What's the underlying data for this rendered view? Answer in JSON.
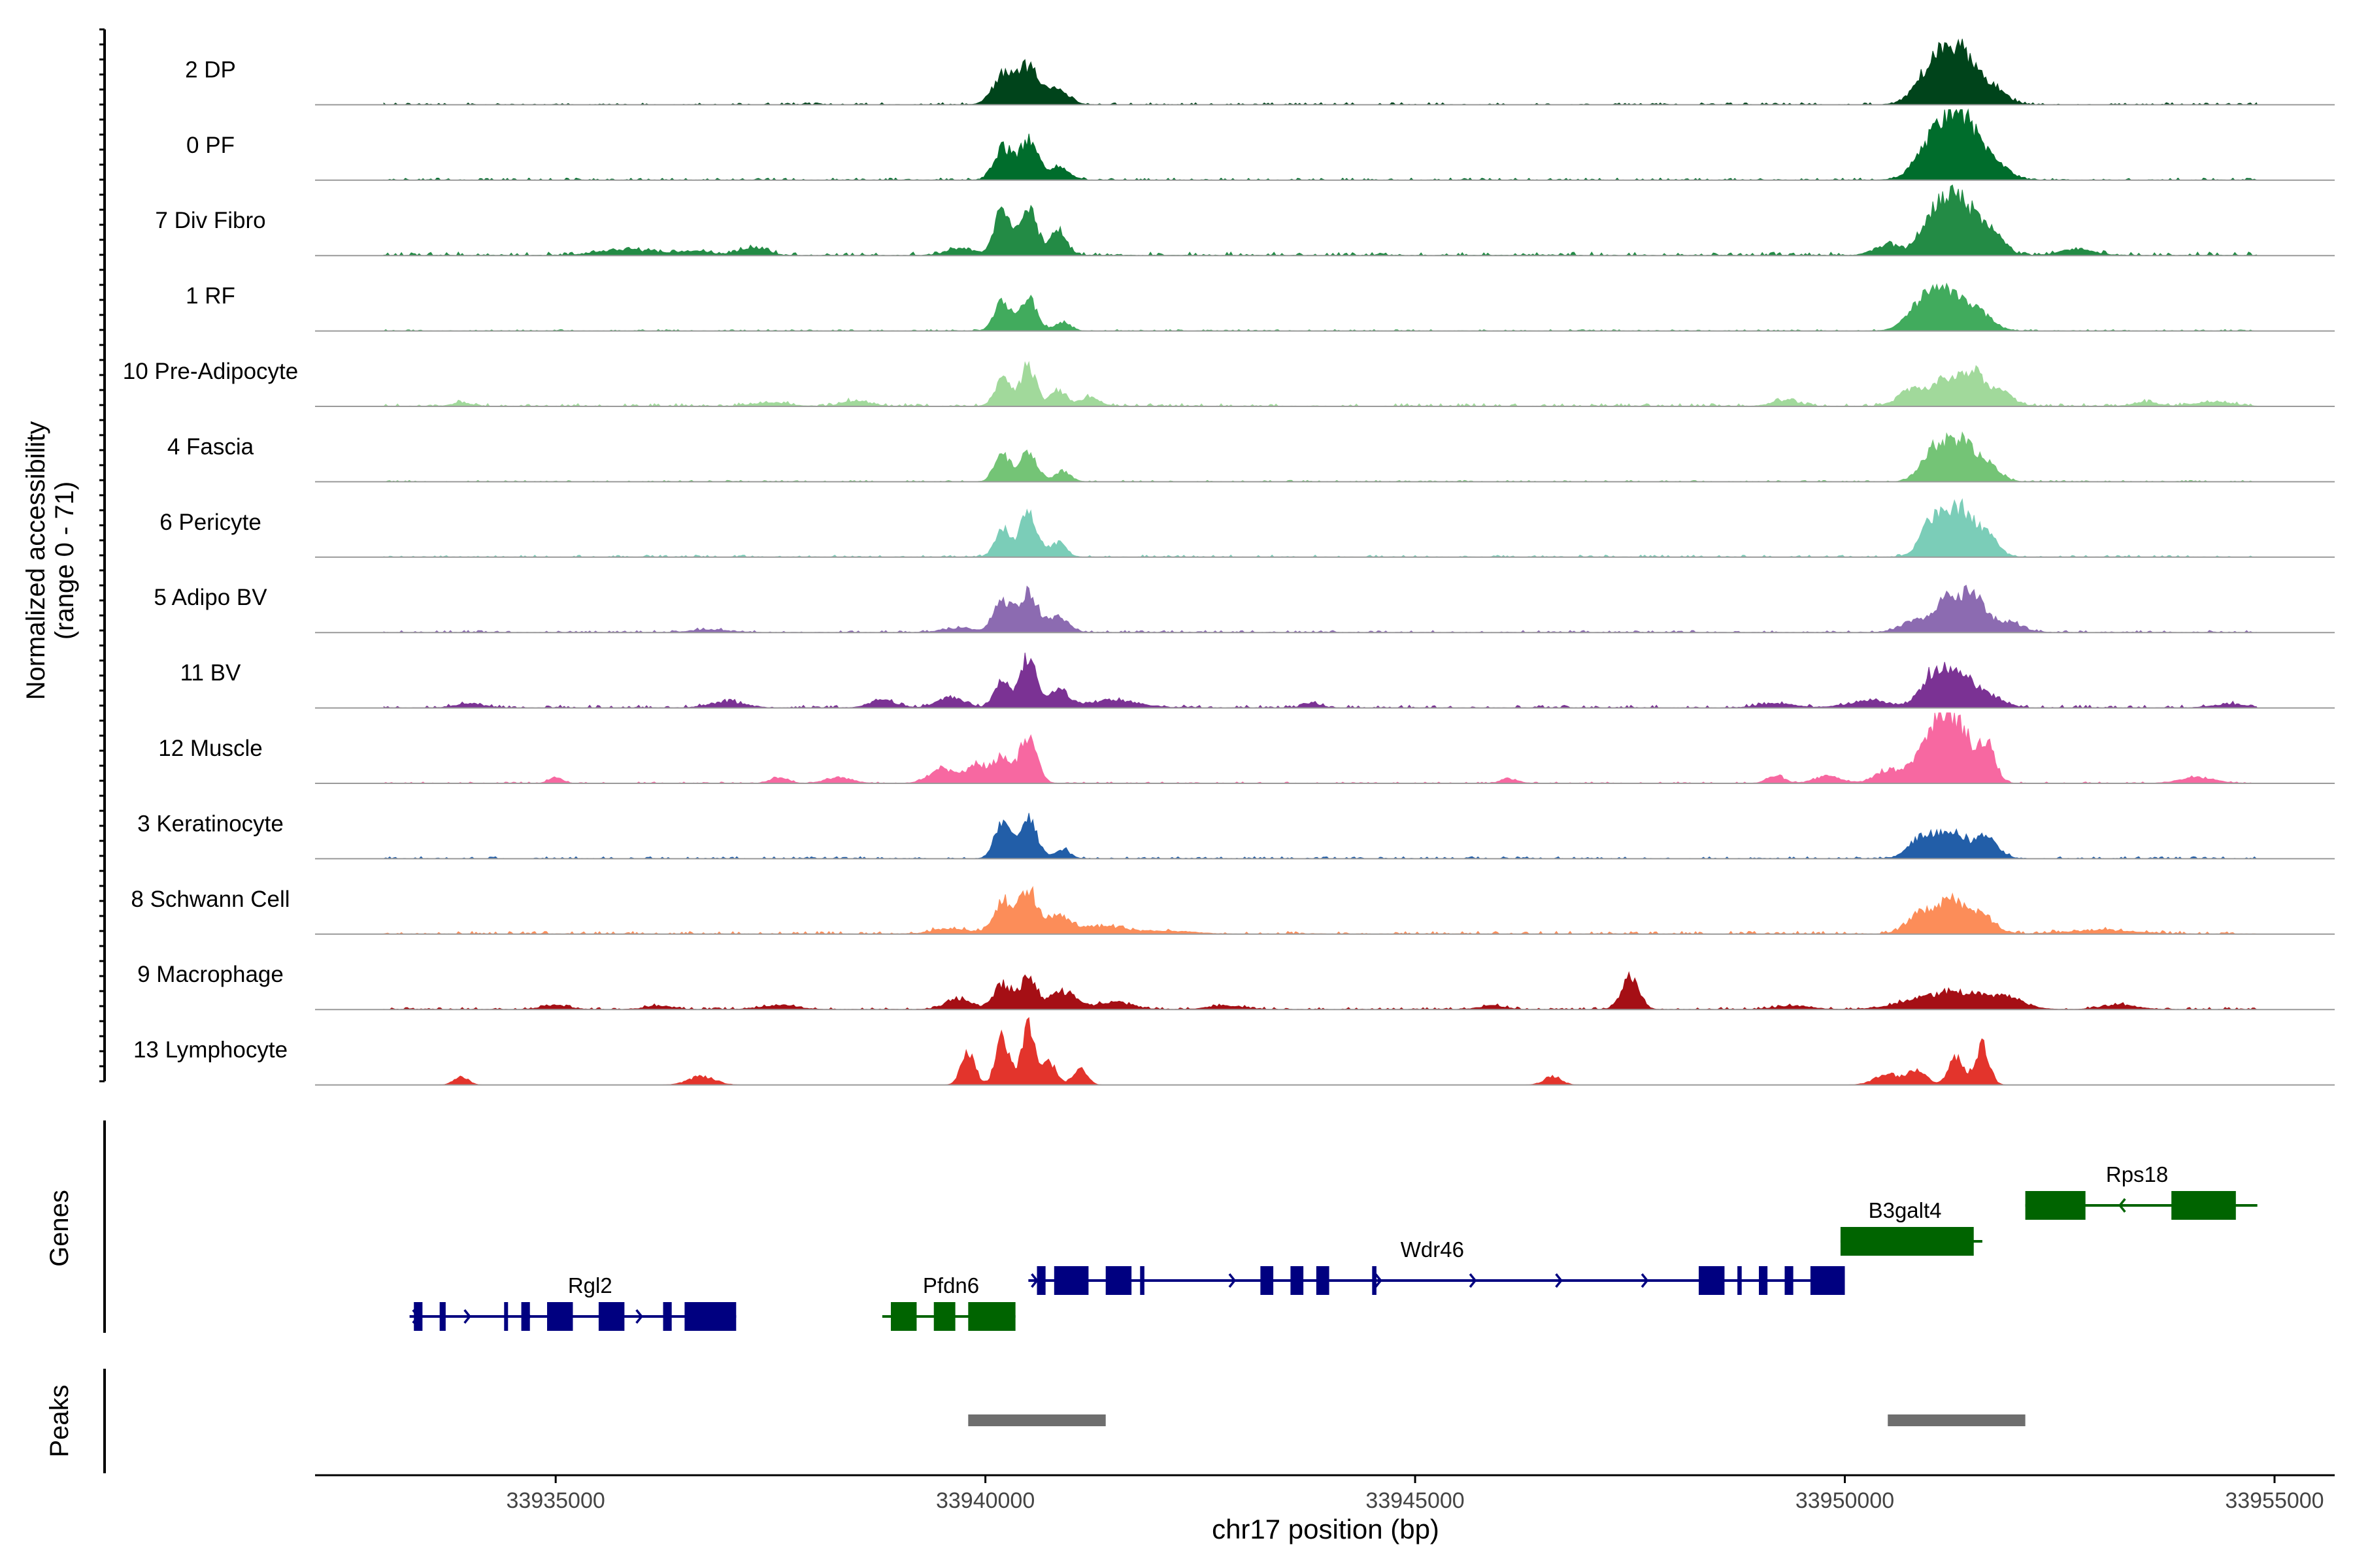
{
  "chart_data": {
    "type": "area",
    "title": "",
    "ylabel_line1": "Normalized accessibility",
    "ylabel_line2": "(range 0 - 71)",
    "xlabel": "chr17 position (bp)",
    "xlim": [
      33932200,
      33955700
    ],
    "x_ticks": [
      33935000,
      33940000,
      33945000,
      33950000,
      33955000
    ],
    "x_tick_labels": [
      "33935000",
      "33940000",
      "33945000",
      "33950000",
      "33955000"
    ],
    "y_range": [
      0,
      71
    ],
    "track_span": [
      33933000,
      33954800
    ],
    "tracks": [
      {
        "label": "2 DP",
        "color": "#00441b",
        "peaks": [
          [
            33940200,
            0.38,
            120
          ],
          [
            33940500,
            0.52,
            130
          ],
          [
            33940850,
            0.2,
            120
          ],
          [
            33951050,
            0.58,
            190
          ],
          [
            33951350,
            0.62,
            170
          ],
          [
            33951700,
            0.25,
            160
          ]
        ],
        "bg": 0.03
      },
      {
        "label": "0 PF",
        "color": "#006d2c",
        "peaks": [
          [
            33940200,
            0.45,
            100
          ],
          [
            33940500,
            0.55,
            110
          ],
          [
            33940850,
            0.18,
            120
          ],
          [
            33951050,
            0.55,
            200
          ],
          [
            33951350,
            0.78,
            180
          ],
          [
            33951700,
            0.28,
            170
          ]
        ],
        "bg": 0.03
      },
      {
        "label": "7 Div Fibro",
        "color": "#238b45",
        "peaks": [
          [
            33939700,
            0.1,
            150
          ],
          [
            33940200,
            0.6,
            100
          ],
          [
            33940500,
            0.68,
            100
          ],
          [
            33940850,
            0.35,
            90
          ],
          [
            33950500,
            0.15,
            150
          ],
          [
            33951050,
            0.55,
            160
          ],
          [
            33951350,
            0.7,
            160
          ],
          [
            33951700,
            0.35,
            140
          ],
          [
            33952700,
            0.08,
            200
          ],
          [
            33935800,
            0.08,
            300
          ],
          [
            33936600,
            0.06,
            200
          ],
          [
            33937300,
            0.1,
            150
          ]
        ],
        "bg": 0.05
      },
      {
        "label": "1 RF",
        "color": "#41ab5d",
        "peaks": [
          [
            33940200,
            0.42,
            90
          ],
          [
            33940500,
            0.45,
            100
          ],
          [
            33940900,
            0.12,
            90
          ],
          [
            33950900,
            0.38,
            170
          ],
          [
            33951200,
            0.45,
            170
          ],
          [
            33951550,
            0.25,
            160
          ]
        ],
        "bg": 0.02
      },
      {
        "label": "10 Pre-Adipocyte",
        "color": "#a1d99b",
        "peaks": [
          [
            33940200,
            0.38,
            90
          ],
          [
            33940500,
            0.55,
            90
          ],
          [
            33940850,
            0.22,
            90
          ],
          [
            33941200,
            0.12,
            120
          ],
          [
            33938500,
            0.08,
            150
          ],
          [
            33937500,
            0.05,
            200
          ],
          [
            33950800,
            0.25,
            160
          ],
          [
            33951200,
            0.35,
            150
          ],
          [
            33951500,
            0.42,
            120
          ],
          [
            33951800,
            0.2,
            150
          ],
          [
            33949300,
            0.08,
            150
          ],
          [
            33953500,
            0.05,
            150
          ],
          [
            33954300,
            0.06,
            200
          ],
          [
            33933900,
            0.05,
            100
          ]
        ],
        "bg": 0.04
      },
      {
        "label": "4 Fascia",
        "color": "#74c476",
        "peaks": [
          [
            33940200,
            0.38,
            90
          ],
          [
            33940500,
            0.42,
            100
          ],
          [
            33940900,
            0.15,
            90
          ],
          [
            33951050,
            0.45,
            150
          ],
          [
            33951350,
            0.5,
            150
          ],
          [
            33951650,
            0.25,
            140
          ]
        ],
        "bg": 0.02
      },
      {
        "label": "6 Pericyte",
        "color": "#7bcdb8",
        "peaks": [
          [
            33940200,
            0.38,
            90
          ],
          [
            33940500,
            0.6,
            100
          ],
          [
            33940850,
            0.2,
            90
          ],
          [
            33951050,
            0.55,
            150
          ],
          [
            33951350,
            0.6,
            150
          ],
          [
            33951650,
            0.3,
            130
          ]
        ],
        "bg": 0.03
      },
      {
        "label": "5 Adipo BV",
        "color": "#8c6bb1",
        "peaks": [
          [
            33940200,
            0.42,
            100
          ],
          [
            33940500,
            0.55,
            110
          ],
          [
            33940850,
            0.2,
            120
          ],
          [
            33939700,
            0.06,
            200
          ],
          [
            33950800,
            0.15,
            160
          ],
          [
            33951200,
            0.48,
            150
          ],
          [
            33951500,
            0.5,
            130
          ],
          [
            33951900,
            0.15,
            160
          ],
          [
            33936800,
            0.04,
            200
          ]
        ],
        "bg": 0.03
      },
      {
        "label": "11 BV",
        "color": "#7b3294",
        "peaks": [
          [
            33940200,
            0.38,
            90
          ],
          [
            33940500,
            0.72,
            90
          ],
          [
            33940850,
            0.25,
            120
          ],
          [
            33939600,
            0.15,
            150
          ],
          [
            33938800,
            0.1,
            150
          ],
          [
            33941500,
            0.1,
            300
          ],
          [
            33950300,
            0.1,
            250
          ],
          [
            33951050,
            0.48,
            150
          ],
          [
            33951350,
            0.45,
            150
          ],
          [
            33951700,
            0.15,
            160
          ],
          [
            33949200,
            0.06,
            200
          ],
          [
            33937000,
            0.08,
            200
          ],
          [
            33934000,
            0.06,
            150
          ],
          [
            33943800,
            0.06,
            100
          ],
          [
            33954500,
            0.05,
            200
          ]
        ],
        "bg": 0.04
      },
      {
        "label": "12 Muscle",
        "color": "#f768a1",
        "peaks": [
          [
            33939500,
            0.2,
            150
          ],
          [
            33939900,
            0.25,
            120
          ],
          [
            33940200,
            0.38,
            100
          ],
          [
            33940500,
            0.62,
            100
          ],
          [
            33950500,
            0.18,
            150
          ],
          [
            33950850,
            0.25,
            130
          ],
          [
            33951100,
            0.85,
            130
          ],
          [
            33951350,
            0.7,
            130
          ],
          [
            33951650,
            0.55,
            100
          ],
          [
            33935000,
            0.08,
            80
          ],
          [
            33937600,
            0.08,
            100
          ],
          [
            33938300,
            0.08,
            150
          ],
          [
            33946100,
            0.06,
            100
          ],
          [
            33949200,
            0.1,
            100
          ],
          [
            33949800,
            0.1,
            150
          ],
          [
            33954100,
            0.08,
            200
          ]
        ],
        "bg": 0.02
      },
      {
        "label": "3 Keratinocyte",
        "color": "#225ea8",
        "peaks": [
          [
            33940200,
            0.5,
            90
          ],
          [
            33940500,
            0.55,
            100
          ],
          [
            33940900,
            0.12,
            90
          ],
          [
            33950900,
            0.3,
            150
          ],
          [
            33951250,
            0.4,
            150
          ],
          [
            33951650,
            0.3,
            130
          ]
        ],
        "bg": 0.03
      },
      {
        "label": "8 Schwann Cell",
        "color": "#fc8d59",
        "peaks": [
          [
            33940200,
            0.45,
            110
          ],
          [
            33940500,
            0.6,
            110
          ],
          [
            33940850,
            0.25,
            120
          ],
          [
            33941300,
            0.1,
            300
          ],
          [
            33939600,
            0.08,
            200
          ],
          [
            33950900,
            0.3,
            160
          ],
          [
            33951250,
            0.45,
            150
          ],
          [
            33951600,
            0.25,
            150
          ],
          [
            33942100,
            0.04,
            300
          ],
          [
            33953000,
            0.05,
            400
          ]
        ],
        "bg": 0.04
      },
      {
        "label": "9 Macrophage",
        "color": "#a50f15",
        "peaks": [
          [
            33939700,
            0.15,
            150
          ],
          [
            33940200,
            0.35,
            100
          ],
          [
            33940500,
            0.42,
            100
          ],
          [
            33940900,
            0.25,
            150
          ],
          [
            33941500,
            0.1,
            200
          ],
          [
            33947500,
            0.45,
            100
          ],
          [
            33950900,
            0.12,
            300
          ],
          [
            33951400,
            0.2,
            300
          ],
          [
            33951900,
            0.12,
            200
          ],
          [
            33935000,
            0.06,
            150
          ],
          [
            33936200,
            0.05,
            150
          ],
          [
            33937600,
            0.06,
            200
          ],
          [
            33942800,
            0.05,
            200
          ],
          [
            33945900,
            0.05,
            150
          ],
          [
            33949400,
            0.05,
            200
          ],
          [
            33953200,
            0.06,
            200
          ]
        ],
        "bg": 0.03
      },
      {
        "label": "13 Lymphocyte",
        "color": "#e3342c",
        "peaks": [
          [
            33939800,
            0.45,
            80
          ],
          [
            33940200,
            0.65,
            80
          ],
          [
            33940500,
            0.85,
            80
          ],
          [
            33940750,
            0.3,
            80
          ],
          [
            33941100,
            0.25,
            80
          ],
          [
            33933900,
            0.12,
            80
          ],
          [
            33936700,
            0.12,
            150
          ],
          [
            33946600,
            0.12,
            100
          ],
          [
            33950500,
            0.15,
            150
          ],
          [
            33950850,
            0.22,
            100
          ],
          [
            33951300,
            0.38,
            90
          ],
          [
            33951600,
            0.55,
            80
          ]
        ],
        "bg": 0.0
      }
    ],
    "genes_label": "Genes",
    "peaks_label": "Peaks",
    "genes": [
      {
        "name": "Rgl2",
        "strand": "+",
        "color": "#000080",
        "start": 33933300,
        "end": 33936700,
        "row": 2,
        "label_x": 33935400,
        "exons": [
          [
            33933350,
            33933450
          ],
          [
            33933650,
            33933720
          ],
          [
            33934400,
            33934430
          ],
          [
            33934600,
            33934700
          ],
          [
            33934900,
            33935200
          ],
          [
            33935500,
            33935800
          ],
          [
            33936250,
            33936350
          ],
          [
            33936500,
            33937100
          ]
        ],
        "arrows": [
          33933400,
          33934000,
          33934700,
          33936000
        ]
      },
      {
        "name": "Pfdn6",
        "strand": "+",
        "color": "#006400",
        "start": 33938800,
        "end": 33940300,
        "row": 2,
        "label_x": 33939600,
        "exons": [
          [
            33938900,
            33939200
          ],
          [
            33939400,
            33939650
          ],
          [
            33939800,
            33940350
          ]
        ],
        "arrows": []
      },
      {
        "name": "Wdr46",
        "strand": "+",
        "color": "#000080",
        "start": 33940500,
        "end": 33949600,
        "row": 1,
        "label_x": 33945200,
        "exons": [
          [
            33940600,
            33940700
          ],
          [
            33940800,
            33941200
          ],
          [
            33941400,
            33941700
          ],
          [
            33941800,
            33941850
          ],
          [
            33943200,
            33943350
          ],
          [
            33943550,
            33943700
          ],
          [
            33943850,
            33944000
          ],
          [
            33944500,
            33944550
          ],
          [
            33948300,
            33948600
          ],
          [
            33948750,
            33948800
          ],
          [
            33949000,
            33949100
          ],
          [
            33949300,
            33949400
          ],
          [
            33949600,
            33950000
          ]
        ],
        "arrows": [
          33940600,
          33942900,
          33944600,
          33945700,
          33946700,
          33947700
        ]
      },
      {
        "name": "B3galt4",
        "strand": "+",
        "color": "#006400",
        "start": 33950000,
        "end": 33951600,
        "row": 0,
        "label_x": 33950700,
        "exons": [
          [
            33949950,
            33951500
          ]
        ],
        "arrows": []
      },
      {
        "name": "Rps18",
        "strand": "-",
        "color": "#006400",
        "start": 33952100,
        "end": 33954800,
        "row": -1,
        "label_x": 33953400,
        "exons": [
          [
            33952100,
            33952800
          ],
          [
            33953800,
            33954550
          ]
        ],
        "arrows": [
          33953200
        ]
      }
    ],
    "peak_regions": [
      [
        33939800,
        33941400
      ],
      [
        33950500,
        33952100
      ]
    ]
  }
}
